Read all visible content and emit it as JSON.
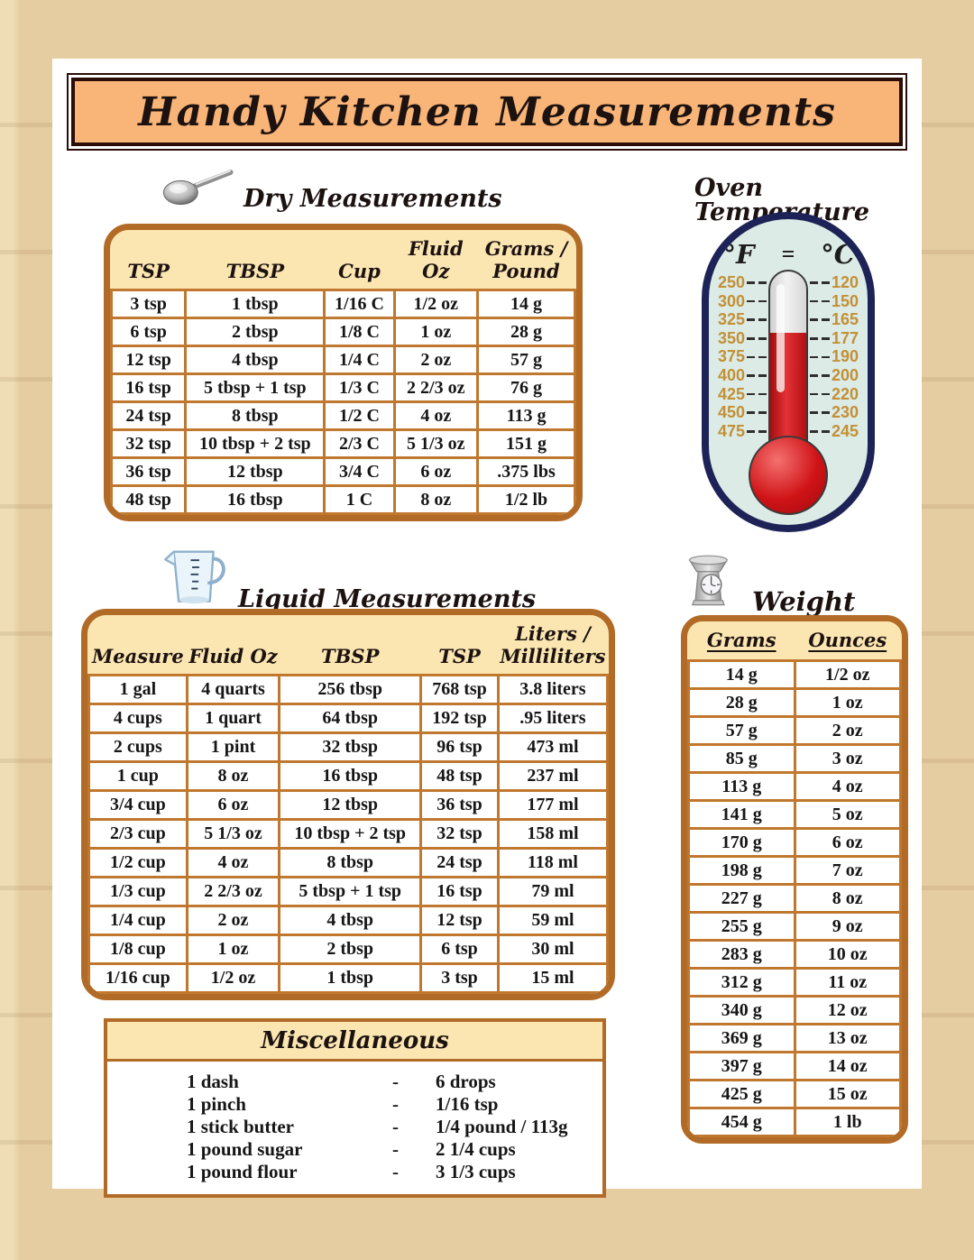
{
  "title": "Handy Kitchen Measurements",
  "colors": {
    "banner_orange": "#f9b478",
    "table_border": "#b26b26",
    "header_cream": "#fbe6b2",
    "thermometer_navy": "#1d2356",
    "thermometer_red": "#d01317",
    "scale_number_gold": "#c29038",
    "background_tan": "#e6cda1"
  },
  "sections": {
    "dry": {
      "heading": "Dry Measurements",
      "icon": "ladle-spoon-icon",
      "columns": [
        "TSP",
        "TBSP",
        "Cup",
        "Fluid Oz",
        "Grams / Pound"
      ],
      "rows": [
        [
          "3 tsp",
          "1 tbsp",
          "1/16 C",
          "1/2 oz",
          "14 g"
        ],
        [
          "6 tsp",
          "2 tbsp",
          "1/8 C",
          "1 oz",
          "28 g"
        ],
        [
          "12 tsp",
          "4 tbsp",
          "1/4 C",
          "2 oz",
          "57 g"
        ],
        [
          "16 tsp",
          "5 tbsp + 1 tsp",
          "1/3 C",
          "2 2/3 oz",
          "76 g"
        ],
        [
          "24 tsp",
          "8 tbsp",
          "1/2 C",
          "4 oz",
          "113 g"
        ],
        [
          "32 tsp",
          "10 tbsp + 2 tsp",
          "2/3 C",
          "5 1/3 oz",
          "151 g"
        ],
        [
          "36 tsp",
          "12 tbsp",
          "3/4 C",
          "6 oz",
          ".375 lbs"
        ],
        [
          "48 tsp",
          "16 tbsp",
          "1 C",
          "8 oz",
          "1/2 lb"
        ]
      ]
    },
    "oven": {
      "heading": "Oven Temperature",
      "unit_f": "°F",
      "equals": "=",
      "unit_c": "°C",
      "scale": [
        [
          "250",
          "120"
        ],
        [
          "300",
          "150"
        ],
        [
          "325",
          "165"
        ],
        [
          "350",
          "177"
        ],
        [
          "375",
          "190"
        ],
        [
          "400",
          "200"
        ],
        [
          "425",
          "220"
        ],
        [
          "450",
          "230"
        ],
        [
          "475",
          "245"
        ]
      ]
    },
    "liquid": {
      "heading": "Liquid Measurements",
      "icon": "measuring-cup-icon",
      "columns": [
        "Measure",
        "Fluid Oz",
        "TBSP",
        "TSP",
        "Liters / Milliliters"
      ],
      "rows": [
        [
          "1 gal",
          "4 quarts",
          "256 tbsp",
          "768 tsp",
          "3.8 liters"
        ],
        [
          "4 cups",
          "1 quart",
          "64 tbsp",
          "192 tsp",
          ".95 liters"
        ],
        [
          "2 cups",
          "1 pint",
          "32 tbsp",
          "96 tsp",
          "473 ml"
        ],
        [
          "1 cup",
          "8 oz",
          "16 tbsp",
          "48 tsp",
          "237 ml"
        ],
        [
          "3/4 cup",
          "6 oz",
          "12 tbsp",
          "36 tsp",
          "177 ml"
        ],
        [
          "2/3 cup",
          "5 1/3 oz",
          "10 tbsp + 2 tsp",
          "32 tsp",
          "158 ml"
        ],
        [
          "1/2 cup",
          "4 oz",
          "8 tbsp",
          "24 tsp",
          "118 ml"
        ],
        [
          "1/3 cup",
          "2 2/3 oz",
          "5 tbsp + 1 tsp",
          "16 tsp",
          "79 ml"
        ],
        [
          "1/4 cup",
          "2 oz",
          "4 tbsp",
          "12 tsp",
          "59 ml"
        ],
        [
          "1/8 cup",
          "1 oz",
          "2 tbsp",
          "6 tsp",
          "30 ml"
        ],
        [
          "1/16 cup",
          "1/2 oz",
          "1 tbsp",
          "3 tsp",
          "15 ml"
        ]
      ]
    },
    "weight": {
      "heading": "Weight",
      "icon": "kitchen-scale-icon",
      "columns": [
        "Grams",
        "Ounces"
      ],
      "rows": [
        [
          "14 g",
          "1/2 oz"
        ],
        [
          "28 g",
          "1 oz"
        ],
        [
          "57 g",
          "2 oz"
        ],
        [
          "85 g",
          "3 oz"
        ],
        [
          "113 g",
          "4 oz"
        ],
        [
          "141 g",
          "5 oz"
        ],
        [
          "170 g",
          "6 oz"
        ],
        [
          "198 g",
          "7 oz"
        ],
        [
          "227 g",
          "8 oz"
        ],
        [
          "255 g",
          "9 oz"
        ],
        [
          "283 g",
          "10 oz"
        ],
        [
          "312 g",
          "11 oz"
        ],
        [
          "340 g",
          "12 oz"
        ],
        [
          "369 g",
          "13 oz"
        ],
        [
          "397 g",
          "14 oz"
        ],
        [
          "425 g",
          "15 oz"
        ],
        [
          "454 g",
          "1 lb"
        ]
      ]
    },
    "misc": {
      "heading": "Miscellaneous",
      "items": [
        [
          "1 dash",
          "-",
          "6 drops"
        ],
        [
          "1 pinch",
          "-",
          "1/16 tsp"
        ],
        [
          "1 stick butter",
          "-",
          "1/4 pound / 113g"
        ],
        [
          "1 pound sugar",
          "-",
          "2 1/4 cups"
        ],
        [
          "1 pound flour",
          "-",
          "3 1/3 cups"
        ]
      ]
    }
  }
}
